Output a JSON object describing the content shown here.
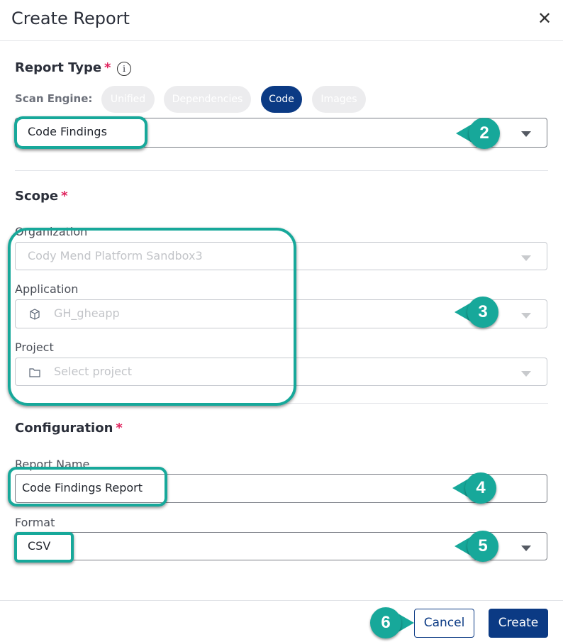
{
  "dialog": {
    "title": "Create Report",
    "close_icon": "close-icon"
  },
  "report_type": {
    "heading": "Report Type",
    "required_mark": "*",
    "scan_engine_label": "Scan Engine:",
    "chips": [
      {
        "label": "Unified",
        "active": false
      },
      {
        "label": "Dependencies",
        "active": false
      },
      {
        "label": "Code",
        "active": true
      },
      {
        "label": "Images",
        "active": false
      }
    ],
    "selected": "Code Findings"
  },
  "scope": {
    "heading": "Scope",
    "required_mark": "*",
    "organization_label": "Organization",
    "organization_value": "Cody Mend Platform Sandbox3",
    "application_label": "Application",
    "application_value": "GH_gheapp",
    "project_label": "Project",
    "project_placeholder": "Select project"
  },
  "configuration": {
    "heading": "Configuration",
    "required_mark": "*",
    "report_name_label": "Report Name",
    "report_name_value": "Code Findings Report",
    "format_label": "Format",
    "format_value": "CSV"
  },
  "footer": {
    "cancel_label": "Cancel",
    "create_label": "Create"
  },
  "annotations": [
    "2",
    "3",
    "4",
    "5",
    "6"
  ],
  "colors": {
    "accent": "#0b3a84",
    "annotation": "#17a89a",
    "required": "#e0245e"
  }
}
